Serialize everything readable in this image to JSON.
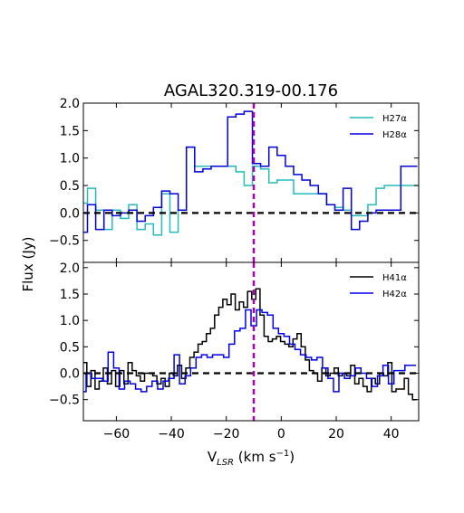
{
  "chart_data": {
    "type": "line",
    "title": "AGAL320.319-00.176",
    "ylabel": "Flux (Jy)",
    "xlabel_main": "V",
    "xlabel_sub": "LSR",
    "xlabel_unit_pre": "(km s",
    "xlabel_unit_exp": "−1",
    "xlabel_unit_post": ")",
    "xlim": [
      -72,
      50
    ],
    "x_ticks": [
      -60,
      -40,
      -20,
      0,
      20,
      40
    ],
    "x_tick_labels": [
      "−60",
      "−40",
      "−20",
      "0",
      "20",
      "40"
    ],
    "reference_velocity": -10,
    "grid": false,
    "panels": [
      {
        "ylim": [
          -0.9,
          2.0
        ],
        "y_ticks": [
          -0.5,
          0.0,
          0.5,
          1.0,
          1.5,
          2.0
        ],
        "y_tick_labels": [
          "−0.5",
          "0.0",
          "0.5",
          "1.0",
          "1.5",
          "2.0"
        ],
        "legend_position": "top-right",
        "series": [
          {
            "name": "H27α",
            "color": "#22bbbb",
            "x": [
              -72,
              -69,
              -66,
              -63,
              -60,
              -57,
              -54,
              -51,
              -48,
              -45,
              -42,
              -39,
              -36,
              -33,
              -30,
              -27,
              -24,
              -21,
              -18,
              -15,
              -12,
              -9,
              -6,
              -3,
              0,
              3,
              6,
              9,
              12,
              15,
              18,
              21,
              24,
              27,
              30,
              33,
              36,
              39,
              42,
              45,
              48
            ],
            "y": [
              0.18,
              0.45,
              0.05,
              -0.3,
              0.05,
              -0.1,
              0.15,
              -0.3,
              -0.2,
              -0.4,
              0.35,
              -0.35,
              0.05,
              1.2,
              0.85,
              0.85,
              0.85,
              0.85,
              0.85,
              0.75,
              0.5,
              0.85,
              0.8,
              0.55,
              0.6,
              0.6,
              0.35,
              0.35,
              0.35,
              0.35,
              0.15,
              0.1,
              0.05,
              -0.05,
              -0.05,
              0.15,
              0.45,
              0.5,
              0.5,
              0.5,
              0.5
            ]
          },
          {
            "name": "H28α",
            "color": "#0000dd",
            "x": [
              -72,
              -69,
              -66,
              -63,
              -60,
              -57,
              -54,
              -51,
              -48,
              -45,
              -42,
              -39,
              -36,
              -33,
              -30,
              -27,
              -24,
              -21,
              -18,
              -15,
              -12,
              -9,
              -6,
              -3,
              0,
              3,
              6,
              9,
              12,
              15,
              18,
              21,
              24,
              27,
              30,
              33,
              36,
              39,
              42,
              45,
              48
            ],
            "y": [
              -0.35,
              0.15,
              -0.3,
              0.05,
              -0.05,
              0.0,
              0.05,
              -0.15,
              -0.05,
              0.1,
              0.4,
              0.35,
              0.05,
              1.2,
              0.75,
              0.8,
              0.85,
              0.85,
              1.75,
              1.8,
              1.85,
              0.9,
              0.85,
              1.2,
              1.05,
              0.85,
              0.7,
              0.6,
              0.5,
              0.35,
              0.15,
              0.05,
              0.45,
              -0.3,
              -0.15,
              0.0,
              0.05,
              0.05,
              0.05,
              0.85,
              0.85
            ]
          }
        ]
      },
      {
        "ylim": [
          -0.9,
          2.1
        ],
        "y_ticks": [
          -0.5,
          0.0,
          0.5,
          1.0,
          1.5,
          2.0
        ],
        "y_tick_labels": [
          "−0.5",
          "0.0",
          "0.5",
          "1.0",
          "1.5",
          "2.0"
        ],
        "legend_position": "top-right",
        "series": [
          {
            "name": "H41α",
            "color": "#000000",
            "x": [
              -71.5,
              -70,
              -68.5,
              -67,
              -65.5,
              -64,
              -62.5,
              -61,
              -59.5,
              -58,
              -56.5,
              -55,
              -53.5,
              -52,
              -50.5,
              -49,
              -47.5,
              -46,
              -44.5,
              -43,
              -41.5,
              -40,
              -38.5,
              -37,
              -35.5,
              -34,
              -32.5,
              -31,
              -29.5,
              -28,
              -26.5,
              -25,
              -23.5,
              -22,
              -20.5,
              -19,
              -17.5,
              -16,
              -14.5,
              -13,
              -11.5,
              -10,
              -8.5,
              -7,
              -5.5,
              -4,
              -2.5,
              -1,
              0.5,
              2,
              3.5,
              5,
              6.5,
              8,
              9.5,
              11,
              12.5,
              14,
              15.5,
              17,
              18.5,
              20,
              21.5,
              23,
              24.5,
              26,
              27.5,
              29,
              30.5,
              32,
              33.5,
              35,
              36.5,
              38,
              39.5,
              41,
              42.5,
              44,
              45.5,
              47,
              48.5
            ],
            "y": [
              0.2,
              -0.25,
              0.05,
              -0.3,
              -0.15,
              0.1,
              -0.2,
              0.05,
              -0.25,
              0.05,
              -0.2,
              0.2,
              0.05,
              -0.05,
              -0.15,
              0.0,
              0.0,
              -0.05,
              -0.2,
              -0.1,
              -0.25,
              0.0,
              -0.05,
              0.15,
              -0.1,
              0.1,
              0.3,
              0.4,
              0.55,
              0.6,
              0.75,
              0.85,
              1.1,
              1.25,
              1.4,
              1.3,
              1.5,
              1.2,
              1.35,
              1.25,
              1.55,
              1.4,
              1.6,
              1.1,
              0.7,
              0.6,
              0.65,
              0.7,
              0.6,
              0.55,
              0.5,
              0.65,
              0.75,
              0.5,
              0.25,
              0.05,
              0.0,
              -0.15,
              0.1,
              -0.05,
              0.0,
              0.1,
              -0.05,
              0.0,
              -0.05,
              0.15,
              -0.2,
              -0.1,
              -0.25,
              -0.35,
              -0.1,
              -0.2,
              0.0,
              -0.05,
              0.2,
              -0.35,
              -0.3,
              -0.3,
              -0.1,
              -0.4,
              -0.5
            ]
          },
          {
            "name": "H42α",
            "color": "#0000ee",
            "x": [
              -72,
              -70,
              -68,
              -66,
              -64,
              -62,
              -60,
              -58,
              -56,
              -54,
              -52,
              -50,
              -48,
              -46,
              -44,
              -42,
              -40,
              -38,
              -36,
              -34,
              -32,
              -30,
              -28,
              -26,
              -24,
              -22,
              -20,
              -18,
              -16,
              -14,
              -12,
              -10,
              -8,
              -6,
              -4,
              -2,
              0,
              2,
              4,
              6,
              8,
              10,
              12,
              14,
              16,
              18,
              20,
              22,
              24,
              26,
              28,
              30,
              32,
              34,
              36,
              38,
              40,
              42,
              44,
              46,
              48
            ],
            "y": [
              -0.35,
              0.0,
              -0.1,
              -0.1,
              -0.15,
              0.4,
              0.1,
              -0.3,
              -0.15,
              -0.2,
              -0.3,
              -0.35,
              -0.25,
              -0.15,
              -0.3,
              -0.15,
              -0.1,
              0.35,
              -0.2,
              -0.05,
              0.1,
              0.3,
              0.35,
              0.3,
              0.35,
              0.35,
              0.3,
              0.55,
              0.8,
              0.85,
              1.2,
              0.9,
              1.2,
              1.15,
              1.1,
              0.85,
              0.75,
              0.7,
              0.55,
              0.45,
              0.35,
              0.3,
              0.25,
              0.3,
              0.1,
              -0.1,
              -0.35,
              0.0,
              -0.1,
              -0.05,
              0.1,
              0.0,
              -0.1,
              -0.25,
              -0.05,
              0.15,
              -0.2,
              0.05,
              0.05,
              0.15,
              0.15
            ]
          }
        ]
      }
    ]
  }
}
